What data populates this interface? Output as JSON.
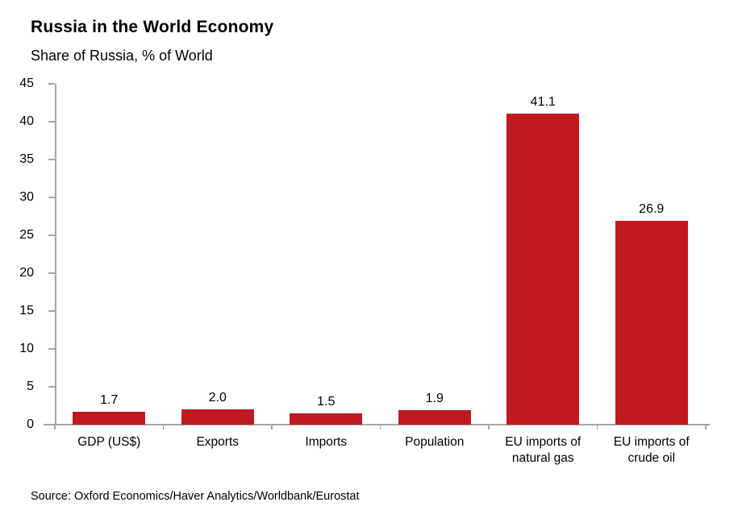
{
  "header": {
    "title": "Russia in the World Economy",
    "subtitle": "Share of Russia, % of World"
  },
  "footer": {
    "source": "Source: Oxford Economics/Haver Analytics/Worldbank/Eurostat"
  },
  "chart_data": {
    "type": "bar",
    "title": "Russia in the World Economy",
    "subtitle": "Share of Russia, % of World",
    "categories": [
      "GDP (US$)",
      "Exports",
      "Imports",
      "Population",
      "EU imports of\nnatural gas",
      "EU imports of\ncrude oil"
    ],
    "values": [
      1.7,
      2.0,
      1.5,
      1.9,
      41.1,
      26.9
    ],
    "value_labels": [
      "1.7",
      "2.0",
      "1.5",
      "1.9",
      "41.1",
      "26.9"
    ],
    "xlabel": "",
    "ylabel": "",
    "ylim": [
      0,
      45
    ],
    "yticks": [
      0,
      5,
      10,
      15,
      20,
      25,
      30,
      35,
      40,
      45
    ],
    "grid": false,
    "legend": false,
    "bar_color": "#be1a20",
    "axis_color": "#a6a6a6",
    "source": "Source: Oxford Economics/Haver Analytics/Worldbank/Eurostat"
  }
}
